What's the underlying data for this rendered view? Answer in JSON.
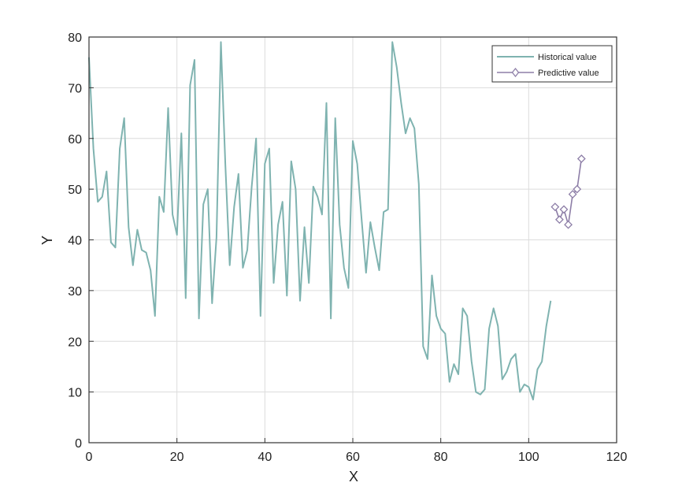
{
  "chart_data": {
    "type": "line",
    "title": "",
    "xlabel": "X",
    "ylabel": "Y",
    "xlim": [
      0,
      120
    ],
    "ylim": [
      0,
      80
    ],
    "xticks": [
      "0",
      "20",
      "40",
      "60",
      "80",
      "100",
      "120"
    ],
    "yticks": [
      "0",
      "10",
      "20",
      "30",
      "40",
      "50",
      "60",
      "70",
      "80"
    ],
    "grid": true,
    "legend": {
      "placement": "top-right",
      "entries": [
        "Historical value",
        "Predictive value"
      ]
    },
    "series": [
      {
        "name": "Historical value",
        "color": "#7fb3b0",
        "marker": "none",
        "x": [
          0,
          1,
          2,
          3,
          4,
          5,
          6,
          7,
          8,
          9,
          10,
          11,
          12,
          13,
          14,
          15,
          16,
          17,
          18,
          19,
          20,
          21,
          22,
          23,
          24,
          25,
          26,
          27,
          28,
          29,
          30,
          31,
          32,
          33,
          34,
          35,
          36,
          37,
          38,
          39,
          40,
          41,
          42,
          43,
          44,
          45,
          46,
          47,
          48,
          49,
          50,
          51,
          52,
          53,
          54,
          55,
          56,
          57,
          58,
          59,
          60,
          61,
          62,
          63,
          64,
          65,
          66,
          67,
          68,
          69,
          70,
          71,
          72,
          73,
          74,
          75,
          76,
          77,
          78,
          79,
          80,
          81,
          82,
          83,
          84,
          85,
          86,
          87,
          88,
          89,
          90,
          91,
          92,
          93,
          94,
          95,
          96,
          97,
          98,
          99,
          100,
          101,
          102,
          103,
          104,
          105
        ],
        "y": [
          76,
          58,
          47.5,
          48.5,
          53.5,
          39.5,
          38.5,
          58,
          64,
          42.5,
          35,
          42,
          38,
          37.5,
          34,
          25,
          48.5,
          45.5,
          66,
          45,
          41,
          61,
          28.5,
          70.5,
          75.5,
          24.5,
          47,
          50,
          27.5,
          40.5,
          79,
          55,
          35,
          46.5,
          53,
          34.5,
          38,
          50.5,
          60,
          25,
          55,
          58,
          31.5,
          43,
          47.5,
          29,
          55.5,
          50,
          28,
          42.5,
          31.5,
          50.5,
          48.5,
          45,
          67,
          24.5,
          64,
          43,
          34.5,
          30.5,
          59.5,
          55,
          44,
          33.5,
          43.5,
          38.5,
          34,
          45.5,
          46,
          79,
          74,
          67,
          61,
          64,
          62,
          51,
          19,
          16.5,
          33,
          25,
          22.5,
          21.5,
          12,
          15.5,
          13.5,
          26.5,
          25,
          16,
          10,
          9.5,
          10.5,
          22.5,
          26.5,
          23,
          12.5,
          14,
          16.5,
          17.5,
          10,
          11.5,
          11,
          8.5,
          14.5,
          16,
          23,
          28
        ]
      },
      {
        "name": "Predictive value",
        "color": "#8d7ea7",
        "marker": "diamond",
        "x": [
          106,
          107,
          108,
          109,
          110,
          111,
          112
        ],
        "y": [
          46.5,
          44,
          46,
          43,
          49,
          50,
          56
        ]
      }
    ]
  }
}
